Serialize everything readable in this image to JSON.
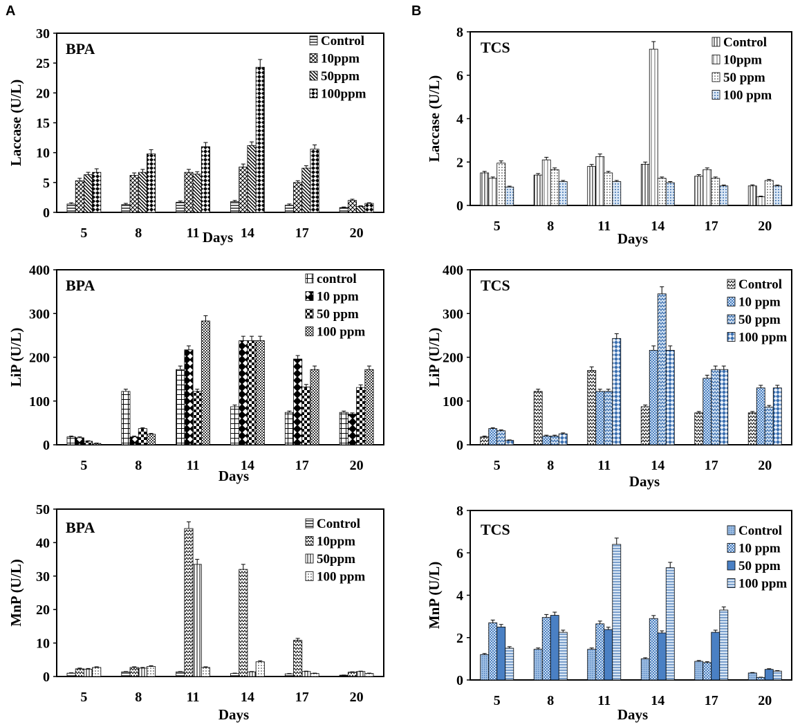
{
  "panel_labels": [
    "A",
    "B"
  ],
  "chart_data": [
    {
      "id": "bpa-laccase",
      "type": "bar",
      "title": "BPA",
      "xlabel": "Days",
      "ylabel": "Laccase (U/L)",
      "categories": [
        "5",
        "8",
        "11",
        "14",
        "17",
        "20"
      ],
      "ylim": [
        0,
        30
      ],
      "yticks": [
        0,
        5,
        10,
        15,
        20,
        25,
        30
      ],
      "legend_position": "top-right",
      "series": [
        {
          "name": "Control",
          "pattern": "hlines",
          "values": [
            1.4,
            1.3,
            1.7,
            1.8,
            1.2,
            0.8
          ],
          "errors": [
            0.2,
            0.2,
            0.2,
            0.2,
            0.2,
            0.1
          ]
        },
        {
          "name": "10ppm",
          "pattern": "crosshatch",
          "values": [
            5.3,
            6.2,
            6.7,
            7.6,
            5.0,
            2.0
          ],
          "errors": [
            0.4,
            0.4,
            0.5,
            0.5,
            0.3,
            0.2
          ]
        },
        {
          "name": "50ppm",
          "pattern": "diag",
          "values": [
            6.3,
            6.7,
            6.4,
            11.2,
            7.4,
            1.0
          ],
          "errors": [
            0.4,
            0.5,
            0.4,
            0.6,
            0.4,
            0.1
          ]
        },
        {
          "name": "100ppm",
          "pattern": "diamonds",
          "values": [
            6.7,
            9.8,
            11.0,
            24.3,
            10.6,
            1.5
          ],
          "errors": [
            0.6,
            0.7,
            0.7,
            1.3,
            0.7,
            0.1
          ]
        }
      ]
    },
    {
      "id": "tcs-laccase",
      "type": "bar",
      "title": "TCS",
      "xlabel": "Days",
      "ylabel": "Laccase (U/L)",
      "categories": [
        "5",
        "8",
        "11",
        "14",
        "17",
        "20"
      ],
      "ylim": [
        0,
        8
      ],
      "yticks": [
        0,
        2,
        4,
        6,
        8
      ],
      "legend_position": "top-right",
      "series": [
        {
          "name": "Control",
          "pattern": "vlines",
          "values": [
            1.5,
            1.4,
            1.8,
            1.9,
            1.35,
            0.9
          ],
          "errors": [
            0.07,
            0.07,
            0.09,
            0.1,
            0.07,
            0.05
          ]
        },
        {
          "name": "10ppm",
          "pattern": "vlines2",
          "values": [
            1.25,
            2.1,
            2.25,
            7.2,
            1.65,
            0.4
          ],
          "errors": [
            0.06,
            0.12,
            0.12,
            0.35,
            0.08,
            0.03
          ]
        },
        {
          "name": "50 ppm",
          "pattern": "dots",
          "values": [
            1.95,
            1.65,
            1.5,
            1.25,
            1.25,
            1.15
          ],
          "errors": [
            0.1,
            0.08,
            0.07,
            0.06,
            0.06,
            0.05
          ]
        },
        {
          "name": "100 ppm",
          "pattern": "bluedots",
          "values": [
            0.85,
            1.1,
            1.1,
            1.05,
            0.9,
            0.9
          ],
          "errors": [
            0.04,
            0.05,
            0.05,
            0.05,
            0.04,
            0.04
          ]
        }
      ]
    },
    {
      "id": "bpa-lip",
      "type": "bar",
      "title": "BPA",
      "xlabel": "Days",
      "ylabel": "LiP (U/L)",
      "categories": [
        "5",
        "8",
        "11",
        "14",
        "17",
        "20"
      ],
      "ylim": [
        0,
        400
      ],
      "yticks": [
        0,
        100,
        200,
        300,
        400
      ],
      "legend_position": "top-right",
      "series": [
        {
          "name": "control",
          "pattern": "grid",
          "values": [
            18,
            122,
            172,
            87,
            74,
            74
          ],
          "errors": [
            2,
            5,
            8,
            4,
            3,
            3
          ]
        },
        {
          "name": "10 ppm",
          "pattern": "bigdiamonds",
          "values": [
            16,
            18,
            217,
            238,
            196,
            70
          ],
          "errors": [
            2,
            2,
            9,
            10,
            8,
            3
          ]
        },
        {
          "name": "50 ppm",
          "pattern": "checker",
          "values": [
            8,
            37,
            122,
            238,
            132,
            131
          ],
          "errors": [
            1,
            2,
            5,
            10,
            6,
            6
          ]
        },
        {
          "name": "100 ppm",
          "pattern": "finecheck",
          "values": [
            3,
            24,
            283,
            238,
            172,
            172
          ],
          "errors": [
            1,
            2,
            12,
            10,
            8,
            8
          ]
        }
      ]
    },
    {
      "id": "tcs-lip",
      "type": "bar",
      "title": "TCS",
      "xlabel": "Days",
      "ylabel": "LiP (U/L)",
      "categories": [
        "5",
        "8",
        "11",
        "14",
        "17",
        "20"
      ],
      "ylim": [
        0,
        400
      ],
      "yticks": [
        0,
        100,
        200,
        300,
        400
      ],
      "legend_position": "top-right",
      "series": [
        {
          "name": "Control",
          "pattern": "zigzag",
          "values": [
            18,
            122,
            170,
            87,
            73,
            73
          ],
          "errors": [
            2,
            5,
            8,
            4,
            3,
            3
          ]
        },
        {
          "name": "10 ppm",
          "pattern": "bluecheck",
          "values": [
            37,
            20,
            122,
            216,
            152,
            130
          ],
          "errors": [
            2,
            2,
            5,
            10,
            7,
            6
          ]
        },
        {
          "name": "50 ppm",
          "pattern": "bluezig",
          "values": [
            32,
            20,
            122,
            345,
            172,
            86
          ],
          "errors": [
            2,
            2,
            5,
            16,
            8,
            4
          ]
        },
        {
          "name": "100 ppm",
          "pattern": "bluediamond",
          "values": [
            10,
            25,
            243,
            216,
            172,
            130
          ],
          "errors": [
            1,
            2,
            11,
            10,
            8,
            6
          ]
        }
      ]
    },
    {
      "id": "bpa-mnp",
      "type": "bar",
      "title": "BPA",
      "xlabel": "Days",
      "ylabel": "MnP (U/L)",
      "categories": [
        "5",
        "8",
        "11",
        "14",
        "17",
        "20"
      ],
      "ylim": [
        0,
        50
      ],
      "yticks": [
        0,
        10,
        20,
        30,
        40,
        50
      ],
      "legend_position": "top-right",
      "series": [
        {
          "name": "Control",
          "pattern": "hlines",
          "values": [
            1.0,
            1.4,
            1.4,
            0.9,
            0.8,
            0.4
          ],
          "errors": [
            0.1,
            0.1,
            0.1,
            0.1,
            0.1,
            0.05
          ]
        },
        {
          "name": "10ppm",
          "pattern": "zigzag",
          "values": [
            2.3,
            2.7,
            44.2,
            32.0,
            10.8,
            1.3
          ],
          "errors": [
            0.2,
            0.2,
            2.0,
            1.5,
            0.6,
            0.1
          ]
        },
        {
          "name": "50ppm",
          "pattern": "vlines",
          "values": [
            2.2,
            2.5,
            33.5,
            1.4,
            1.5,
            1.5
          ],
          "errors": [
            0.2,
            0.2,
            1.5,
            0.1,
            0.1,
            0.1
          ]
        },
        {
          "name": "100 ppm",
          "pattern": "dots",
          "values": [
            2.7,
            3.0,
            2.7,
            4.4,
            0.9,
            0.9
          ],
          "errors": [
            0.2,
            0.2,
            0.2,
            0.3,
            0.1,
            0.1
          ]
        }
      ]
    },
    {
      "id": "tcs-mnp",
      "type": "bar",
      "title": "TCS",
      "xlabel": "Days",
      "ylabel": "MnP (U/L)",
      "categories": [
        "5",
        "8",
        "11",
        "14",
        "17",
        "20"
      ],
      "ylim": [
        0,
        8
      ],
      "yticks": [
        0,
        2,
        4,
        6,
        8
      ],
      "legend_position": "top-right",
      "series": [
        {
          "name": "Control",
          "pattern": "bluefine",
          "values": [
            1.2,
            1.45,
            1.45,
            1.0,
            0.88,
            0.33
          ],
          "errors": [
            0.05,
            0.06,
            0.06,
            0.05,
            0.04,
            0.02
          ]
        },
        {
          "name": "10 ppm",
          "pattern": "bluecheck",
          "values": [
            2.7,
            2.95,
            2.65,
            2.9,
            0.82,
            0.12
          ],
          "errors": [
            0.13,
            0.14,
            0.13,
            0.14,
            0.04,
            0.01
          ]
        },
        {
          "name": "50 ppm",
          "pattern": "blueplain",
          "values": [
            2.5,
            3.05,
            2.38,
            2.22,
            2.25,
            0.5
          ],
          "errors": [
            0.12,
            0.15,
            0.11,
            0.1,
            0.1,
            0.03
          ]
        },
        {
          "name": "100 ppm",
          "pattern": "bluehlines",
          "values": [
            1.5,
            2.25,
            6.4,
            5.3,
            3.3,
            0.42
          ],
          "errors": [
            0.07,
            0.1,
            0.3,
            0.25,
            0.15,
            0.02
          ]
        }
      ]
    }
  ]
}
